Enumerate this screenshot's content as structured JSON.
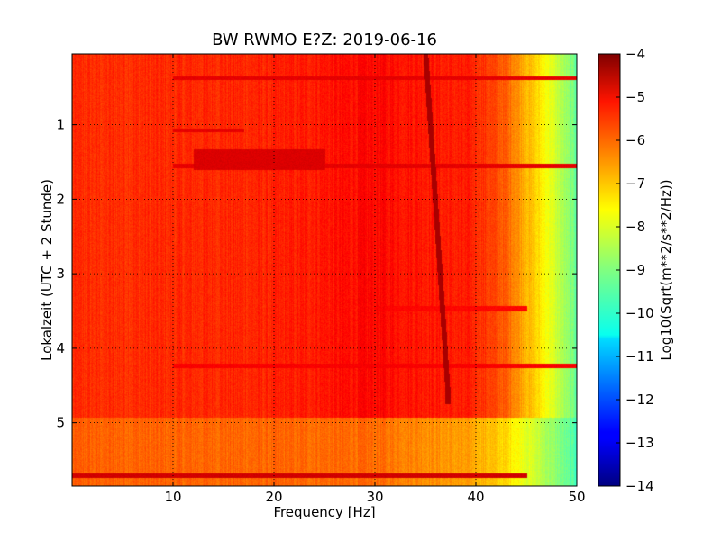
{
  "chart_data": {
    "type": "heatmap",
    "title": "BW RWMO E?Z: 2019-06-16",
    "xlabel": "Frequency [Hz]",
    "ylabel": "Lokalzeit (UTC + 2 Stunde)",
    "xlim": [
      0,
      50
    ],
    "ylim": [
      5.85,
      0.05
    ],
    "x_inverted": false,
    "y_inverted": true,
    "xticks": [
      10,
      20,
      30,
      40,
      50
    ],
    "yticks": [
      1,
      2,
      3,
      4,
      5
    ],
    "grid": true,
    "grid_style": "dotted",
    "colormap": "jet",
    "colorbar": {
      "label": "Log10(Sqrt(m**2/s**2/Hz))",
      "range": [
        -14,
        -4
      ],
      "ticks": [
        -4,
        -5,
        -6,
        -7,
        -8,
        -9,
        -10,
        -11,
        -12,
        -13,
        -14
      ]
    },
    "features": {
      "background_level_by_frequency": [
        {
          "freq": 0,
          "value": -5.7
        },
        {
          "freq": 20,
          "value": -5.6
        },
        {
          "freq": 30,
          "value": -5.3
        },
        {
          "freq": 40,
          "value": -5.6
        },
        {
          "freq": 43,
          "value": -6.2
        },
        {
          "freq": 45,
          "value": -7.0
        },
        {
          "freq": 47,
          "value": -7.8
        },
        {
          "freq": 49,
          "value": -8.8
        },
        {
          "freq": 50,
          "value": -9.3
        }
      ],
      "late_period_level_by_frequency": [
        {
          "freq": 0,
          "value": -6.2
        },
        {
          "freq": 30,
          "value": -6.3
        },
        {
          "freq": 40,
          "value": -6.9
        },
        {
          "freq": 43,
          "value": -7.4
        },
        {
          "freq": 46,
          "value": -8.3
        },
        {
          "freq": 48,
          "value": -8.9
        },
        {
          "freq": 50,
          "value": -9.6
        }
      ],
      "late_period_start_hour": 4.92,
      "drifting_line": {
        "start": {
          "freq": 35.0,
          "hour": 0.05
        },
        "end": {
          "freq": 37.2,
          "hour": 4.6
        },
        "value": -4.4
      },
      "bright_bands": [
        {
          "f0": 10,
          "f1": 50,
          "h0": 0.35,
          "h1": 0.4,
          "value": -5.0
        },
        {
          "f0": 10,
          "f1": 17,
          "h0": 1.05,
          "h1": 1.1,
          "value": -5.0
        },
        {
          "f0": 12,
          "f1": 25,
          "h0": 1.33,
          "h1": 1.6,
          "value": -4.9
        },
        {
          "f0": 10,
          "f1": 50,
          "h0": 1.52,
          "h1": 1.58,
          "value": -5.0
        },
        {
          "f0": 30,
          "f1": 45,
          "h0": 3.43,
          "h1": 3.5,
          "value": -5.3
        },
        {
          "f0": 10,
          "f1": 50,
          "h0": 4.2,
          "h1": 4.26,
          "value": -5.2
        },
        {
          "f0": 0,
          "f1": 45,
          "h0": 5.67,
          "h1": 5.73,
          "value": -4.8
        }
      ]
    }
  }
}
